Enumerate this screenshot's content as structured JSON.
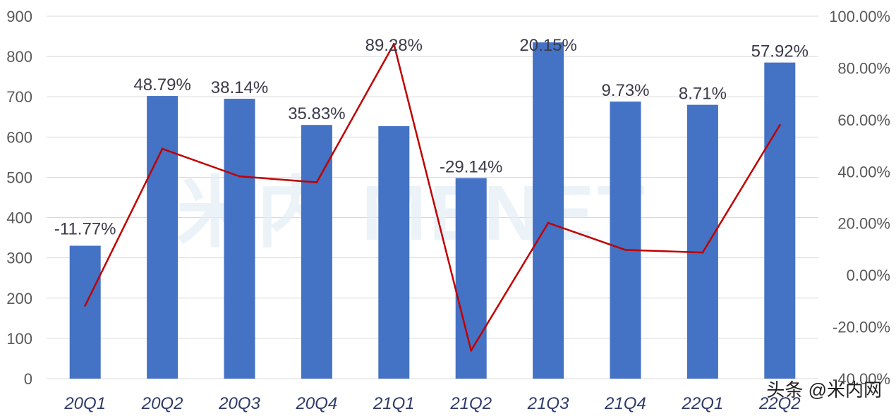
{
  "chart_data": {
    "type": "bar",
    "categories": [
      "20Q1",
      "20Q2",
      "20Q3",
      "20Q4",
      "21Q1",
      "21Q2",
      "21Q3",
      "21Q4",
      "22Q1",
      "22Q2"
    ],
    "series": [
      {
        "type": "bar",
        "axis": "left",
        "color": "#4472c4",
        "values": [
          330,
          702,
          695,
          630,
          627,
          498,
          835,
          688,
          680,
          785
        ]
      },
      {
        "type": "line",
        "axis": "right",
        "color": "#c00000",
        "values": [
          -11.77,
          48.79,
          38.14,
          35.83,
          89.28,
          -29.14,
          20.15,
          9.73,
          8.71,
          57.92
        ],
        "data_labels": [
          "-11.77%",
          "48.79%",
          "38.14%",
          "35.83%",
          "89.28%",
          "-29.14%",
          "20.15%",
          "9.73%",
          "8.71%",
          "57.92%"
        ]
      }
    ],
    "y_left": {
      "ylim": [
        0,
        900
      ],
      "ticks": [
        "0",
        "100",
        "200",
        "300",
        "400",
        "500",
        "600",
        "700",
        "800",
        "900"
      ]
    },
    "y_right": {
      "ylim": [
        -40,
        100
      ],
      "ticks": [
        "-40.00%",
        "-20.00%",
        "0.00%",
        "20.00%",
        "40.00%",
        "60.00%",
        "80.00%",
        "100.00%"
      ]
    },
    "grid": true,
    "title": "",
    "xlabel": "",
    "ylabel": ""
  },
  "watermark": "头条 @米内网",
  "background_watermark": "米内 MENET"
}
